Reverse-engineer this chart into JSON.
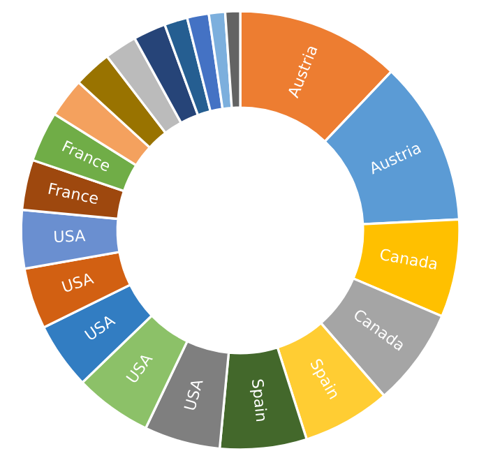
{
  "chart_data": {
    "type": "donut",
    "categories": [
      "Austria",
      "Austria",
      "Canada",
      "Canada",
      "Spain",
      "Spain",
      "USA",
      "USA",
      "USA",
      "USA",
      "USA",
      "France",
      "France",
      null,
      null,
      null,
      null,
      null,
      null,
      null,
      null
    ],
    "values": [
      12.1,
      12.1,
      7.2,
      7.2,
      6.5,
      6.4,
      5.6,
      5.7,
      4.9,
      4.5,
      4.3,
      3.7,
      3.7,
      2.9,
      2.8,
      2.4,
      2.4,
      1.7,
      1.6,
      1.2,
      1.1
    ],
    "colors": [
      "#ed7d31",
      "#5b9bd5",
      "#ffc000",
      "#a5a5a5",
      "#ffcd33",
      "#43682b",
      "#7f7f7f",
      "#8cc168",
      "#327dc2",
      "#d26012",
      "#6a8fd0",
      "#9e480e",
      "#70ad47",
      "#f4a15e",
      "#997300",
      "#bbbbbb",
      "#264478",
      "#255e91",
      "#4472c4",
      "#7cafdd",
      "#636363"
    ]
  }
}
